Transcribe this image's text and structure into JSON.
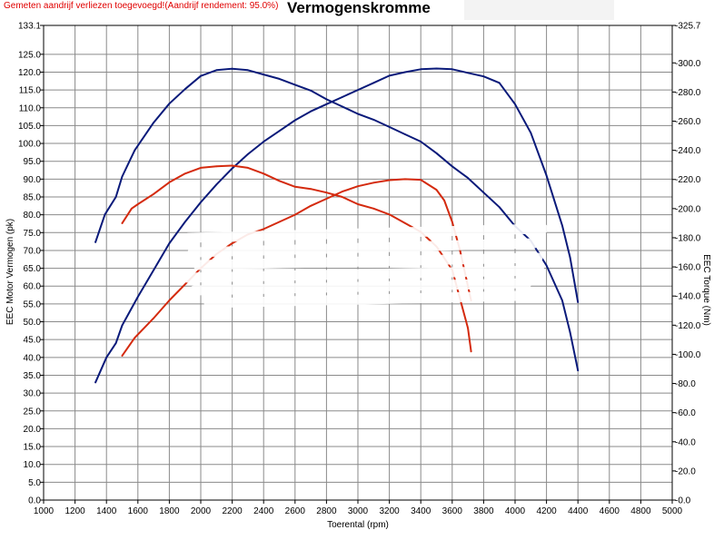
{
  "header": {
    "warning": "Gemeten aandrijf verliezen toegevoegd!(Aandrijf rendement: 95.0%)",
    "title": "Vermogenskromme"
  },
  "chart_data": {
    "type": "line",
    "title": "Vermogenskromme",
    "xlabel": "Toerental (rpm)",
    "ylabel_left": "EEC Motor Vermogen (pk)",
    "ylabel_right": "EEC Torque (Nm)",
    "xlim": [
      1000,
      5000
    ],
    "ylim_left": [
      0,
      133.1
    ],
    "ylim_right": [
      0,
      325.7
    ],
    "grid": true,
    "x_ticks": [
      1000,
      1200,
      1400,
      1600,
      1800,
      2000,
      2200,
      2400,
      2600,
      2800,
      3000,
      3200,
      3400,
      3600,
      3800,
      4000,
      4200,
      4400,
      4600,
      4800,
      5000
    ],
    "x_tick_labels": [
      "1000",
      "1200",
      "1400",
      "1600",
      "1800",
      "2000",
      "2200",
      "2400",
      "2600",
      "2800",
      "3000",
      "3200",
      "3400",
      "3600",
      "3800",
      "4000",
      "4200",
      "4400",
      "4600",
      "4800",
      "5000"
    ],
    "y_left_ticks": [
      0,
      5,
      10,
      15,
      20,
      25,
      30,
      35,
      40,
      45,
      50,
      55,
      60,
      65,
      70,
      75,
      80,
      85,
      90,
      95,
      100,
      105,
      110,
      115,
      120,
      125,
      133.1
    ],
    "y_left_tick_labels": [
      "0.0",
      "5.0",
      "10.0",
      "15.0",
      "20.0",
      "25.0",
      "30.0",
      "35.0",
      "40.0",
      "45.0",
      "50.0",
      "55.0",
      "60.0",
      "65.0",
      "70.0",
      "75.0",
      "80.0",
      "85.0",
      "90.0",
      "95.0",
      "100.0",
      "105.0",
      "110.0",
      "115.0",
      "120.0",
      "125.0",
      "133.1"
    ],
    "y_right_ticks": [
      0,
      20,
      40,
      60,
      80,
      100,
      120,
      140,
      160,
      180,
      200,
      220,
      240,
      260,
      280,
      300,
      325.7
    ],
    "y_right_tick_labels": [
      "0.0",
      "20.0",
      "40.0",
      "60.0",
      "80.0",
      "100.0",
      "120.0",
      "140.0",
      "160.0",
      "180.0",
      "200.0",
      "220.0",
      "240.0",
      "260.0",
      "280.0",
      "300.0",
      "325.7"
    ],
    "colors": {
      "blue": "#0a1a7a",
      "red": "#d42a0e"
    },
    "series": [
      {
        "color": "#0a1a7a",
        "axis": "right",
        "points": [
          [
            1330,
            177
          ],
          [
            1390,
            196
          ],
          [
            1460,
            208
          ],
          [
            1500,
            222
          ],
          [
            1580,
            240
          ],
          [
            1700,
            259
          ],
          [
            1800,
            272
          ],
          [
            1900,
            282
          ],
          [
            2000,
            291
          ],
          [
            2100,
            295
          ],
          [
            2200,
            296
          ],
          [
            2300,
            295
          ],
          [
            2400,
            292
          ],
          [
            2500,
            289
          ],
          [
            2600,
            285
          ],
          [
            2700,
            281
          ],
          [
            2800,
            275
          ],
          [
            2900,
            270
          ],
          [
            3000,
            265
          ],
          [
            3100,
            261
          ],
          [
            3200,
            256
          ],
          [
            3300,
            251
          ],
          [
            3400,
            246
          ],
          [
            3500,
            238
          ],
          [
            3600,
            229
          ],
          [
            3700,
            221
          ],
          [
            3800,
            211
          ],
          [
            3900,
            201
          ],
          [
            4000,
            188
          ],
          [
            4100,
            178
          ],
          [
            4200,
            161
          ],
          [
            4300,
            137
          ],
          [
            4350,
            115
          ],
          [
            4400,
            89
          ]
        ]
      },
      {
        "color": "#0a1a7a",
        "axis": "left",
        "points": [
          [
            1330,
            33
          ],
          [
            1400,
            40
          ],
          [
            1460,
            44
          ],
          [
            1500,
            49
          ],
          [
            1600,
            57
          ],
          [
            1700,
            64.5
          ],
          [
            1800,
            72
          ],
          [
            1900,
            78
          ],
          [
            2000,
            83.5
          ],
          [
            2100,
            88.5
          ],
          [
            2200,
            93
          ],
          [
            2300,
            97
          ],
          [
            2400,
            100.5
          ],
          [
            2500,
            103.5
          ],
          [
            2600,
            106.5
          ],
          [
            2700,
            109
          ],
          [
            2800,
            111
          ],
          [
            2900,
            113
          ],
          [
            3000,
            115
          ],
          [
            3100,
            117
          ],
          [
            3200,
            119
          ],
          [
            3300,
            120
          ],
          [
            3400,
            120.8
          ],
          [
            3500,
            121
          ],
          [
            3600,
            120.8
          ],
          [
            3700,
            119.8
          ],
          [
            3800,
            118.8
          ],
          [
            3900,
            117
          ],
          [
            4000,
            111
          ],
          [
            4100,
            103
          ],
          [
            4200,
            91
          ],
          [
            4300,
            77
          ],
          [
            4350,
            68
          ],
          [
            4400,
            55.5
          ]
        ]
      },
      {
        "color": "#d42a0e",
        "axis": "right",
        "points": [
          [
            1500,
            190
          ],
          [
            1560,
            200
          ],
          [
            1600,
            203
          ],
          [
            1700,
            210
          ],
          [
            1800,
            218
          ],
          [
            1900,
            224
          ],
          [
            2000,
            228
          ],
          [
            2100,
            229
          ],
          [
            2200,
            229.5
          ],
          [
            2300,
            228
          ],
          [
            2400,
            224
          ],
          [
            2500,
            219
          ],
          [
            2600,
            215
          ],
          [
            2700,
            213.5
          ],
          [
            2800,
            211
          ],
          [
            2900,
            208
          ],
          [
            3000,
            203
          ],
          [
            3100,
            200
          ],
          [
            3200,
            196
          ],
          [
            3300,
            190
          ],
          [
            3400,
            184
          ],
          [
            3500,
            174
          ],
          [
            3600,
            158
          ],
          [
            3700,
            118
          ],
          [
            3720,
            102
          ]
        ]
      },
      {
        "color": "#d42a0e",
        "axis": "left",
        "points": [
          [
            1500,
            40.5
          ],
          [
            1580,
            45.5
          ],
          [
            1700,
            51
          ],
          [
            1800,
            56
          ],
          [
            1900,
            60.5
          ],
          [
            2000,
            65
          ],
          [
            2100,
            69
          ],
          [
            2200,
            72
          ],
          [
            2300,
            74.5
          ],
          [
            2400,
            76
          ],
          [
            2500,
            78
          ],
          [
            2600,
            80
          ],
          [
            2700,
            82.5
          ],
          [
            2800,
            84.5
          ],
          [
            2900,
            86.5
          ],
          [
            3000,
            88
          ],
          [
            3100,
            89
          ],
          [
            3200,
            89.7
          ],
          [
            3300,
            90
          ],
          [
            3400,
            89.8
          ],
          [
            3500,
            87
          ],
          [
            3550,
            84
          ],
          [
            3600,
            78
          ],
          [
            3650,
            70
          ],
          [
            3700,
            60
          ],
          [
            3720,
            56
          ]
        ]
      }
    ]
  }
}
